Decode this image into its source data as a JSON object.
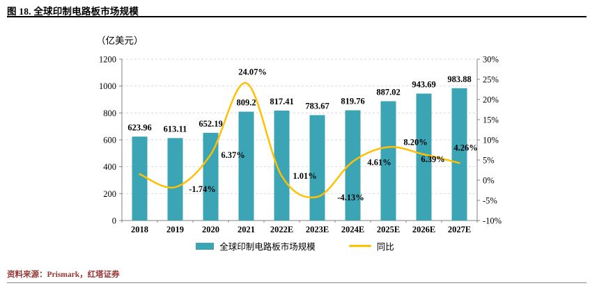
{
  "figure": {
    "title": "图 18. 全球印制电路板市场规模",
    "unit_label": "（亿美元）",
    "source": "资料来源：Prismark，红塔证券"
  },
  "legend": {
    "bars_label": "全球印制电路板市场规模",
    "line_label": "同比"
  },
  "colors": {
    "bar": "#3BA5B5",
    "line": "#FFC000",
    "grid": "#D9D9D9",
    "axis": "#808080",
    "text": "#000000",
    "source_text": "#943634"
  },
  "chart_data": {
    "type": "bar",
    "subtype": "bar + line combo with dual value axes",
    "title": "图 18. 全球印制电路板市场规模",
    "categories": [
      "2018",
      "2019",
      "2020",
      "2021",
      "2022E",
      "2023E",
      "2024E",
      "2025E",
      "2026E",
      "2027E"
    ],
    "series": [
      {
        "name": "全球印制电路板市场规模",
        "chart": "bar",
        "axis": "left",
        "values": [
          623.96,
          613.11,
          652.19,
          809.2,
          817.41,
          783.67,
          819.76,
          887.02,
          943.69,
          983.88
        ],
        "labels": [
          "623.96",
          "613.11",
          "652.19",
          "809.2",
          "817.41",
          "783.67",
          "819.76",
          "887.02",
          "943.69",
          "983.88"
        ]
      },
      {
        "name": "同比",
        "chart": "line",
        "axis": "right",
        "values": [
          1.5,
          -1.74,
          6.37,
          24.07,
          1.01,
          -4.13,
          4.61,
          8.2,
          6.39,
          4.26
        ],
        "labels": [
          "",
          "-1.74%",
          "6.37%",
          "24.07%",
          "1.01%",
          "-4.13%",
          "4.61%",
          "8.20%",
          "6.39%",
          "4.26%"
        ],
        "note": "first point (2018) is unlabeled in the figure; value estimated from plot"
      }
    ],
    "left_axis": {
      "title": "（亿美元）",
      "min": 0,
      "max": 1200,
      "step": 200,
      "ticks": [
        "0",
        "200",
        "400",
        "600",
        "800",
        "1000",
        "1200"
      ]
    },
    "right_axis": {
      "min": -10,
      "max": 30,
      "step": 5,
      "ticks": [
        "-10%",
        "-5%",
        "0%",
        "5%",
        "10%",
        "15%",
        "20%",
        "25%",
        "30%"
      ]
    },
    "grid": true,
    "legend_position": "bottom"
  }
}
